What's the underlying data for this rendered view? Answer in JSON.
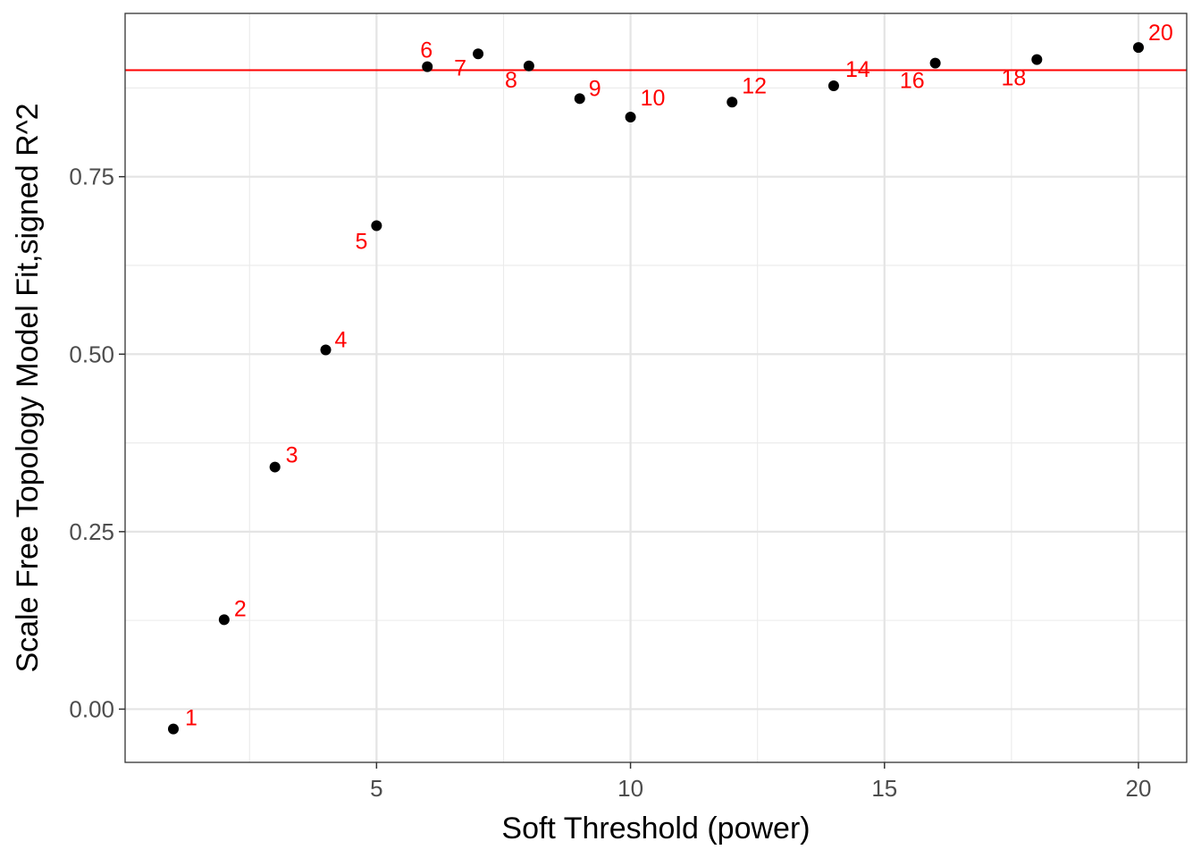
{
  "chart_data": {
    "type": "scatter",
    "title": "",
    "xlabel": "Soft Threshold (power)",
    "ylabel": "Scale Free Topology Model Fit,signed R^2",
    "xlim": [
      0.05,
      20.95
    ],
    "ylim": [
      -0.075,
      0.98
    ],
    "x_ticks": [
      5,
      10,
      15,
      20
    ],
    "x_tick_labels": [
      "5",
      "10",
      "15",
      "20"
    ],
    "y_ticks": [
      0.0,
      0.25,
      0.5,
      0.75
    ],
    "y_tick_labels": [
      "0.00",
      "0.25",
      "0.50",
      "0.75"
    ],
    "x_minor_gridlines": [
      2.5,
      7.5,
      12.5,
      17.5
    ],
    "y_minor_gridlines": [
      0.125,
      0.375,
      0.625,
      0.875
    ],
    "grid": true,
    "hline": {
      "y": 0.9,
      "color": "#ff0000"
    },
    "point_color": "#000000",
    "label_color": "#ff0000",
    "points": [
      {
        "x": 1,
        "y": -0.028,
        "label": "1"
      },
      {
        "x": 2,
        "y": 0.126,
        "label": "2"
      },
      {
        "x": 3,
        "y": 0.341,
        "label": "3"
      },
      {
        "x": 4,
        "y": 0.506,
        "label": "4"
      },
      {
        "x": 5,
        "y": 0.681,
        "label": "5"
      },
      {
        "x": 6,
        "y": 0.905,
        "label": "6"
      },
      {
        "x": 7,
        "y": 0.923,
        "label": "7"
      },
      {
        "x": 8,
        "y": 0.906,
        "label": "8"
      },
      {
        "x": 9,
        "y": 0.86,
        "label": "9"
      },
      {
        "x": 10,
        "y": 0.834,
        "label": "10"
      },
      {
        "x": 12,
        "y": 0.855,
        "label": "12"
      },
      {
        "x": 14,
        "y": 0.878,
        "label": "14"
      },
      {
        "x": 16,
        "y": 0.91,
        "label": "16"
      },
      {
        "x": 18,
        "y": 0.915,
        "label": "18"
      },
      {
        "x": 20,
        "y": 0.932,
        "label": "20"
      }
    ]
  }
}
